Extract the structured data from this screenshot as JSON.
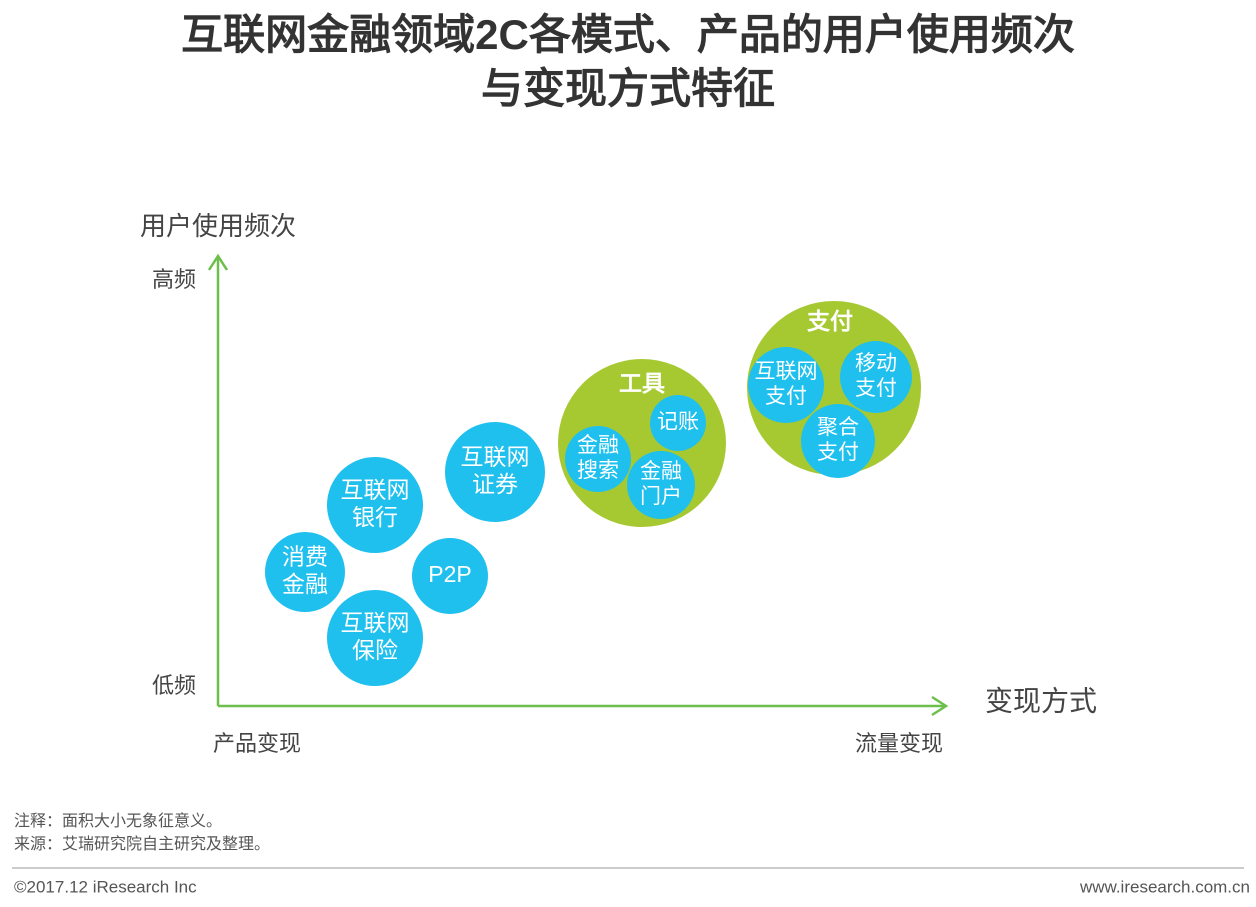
{
  "header": {
    "title": [
      "互联网金融领域2C各模式、产品的用户使用频次",
      "与变现方式特征"
    ]
  },
  "axes": {
    "y_title": "用户使用频次",
    "y_high": "高频",
    "y_low": "低频",
    "x_title": "变现方式",
    "x_left": "产品变现",
    "x_right": "流量变现"
  },
  "nodes": [
    {
      "lines": [
        "消费",
        "金融"
      ]
    },
    {
      "lines": [
        "互联网",
        "银行"
      ]
    },
    {
      "lines": [
        "互联网",
        "保险"
      ]
    },
    {
      "lines": [
        "P2P"
      ]
    },
    {
      "lines": [
        "互联网",
        "证券"
      ]
    }
  ],
  "groups": [
    {
      "label": "工具",
      "nodes": [
        {
          "lines": [
            "记账"
          ]
        },
        {
          "lines": [
            "金融",
            "搜索"
          ]
        },
        {
          "lines": [
            "金融",
            "门户"
          ]
        }
      ]
    },
    {
      "label": "支付",
      "nodes": [
        {
          "lines": [
            "互联网",
            "支付"
          ]
        },
        {
          "lines": [
            "移动",
            "支付"
          ]
        },
        {
          "lines": [
            "聚合",
            "支付"
          ]
        }
      ]
    }
  ],
  "notes": [
    "注释：面积大小无象征意义。",
    "来源：艾瑞研究院自主研究及整理。"
  ],
  "footer": {
    "left": "©2017.12 iResearch Inc",
    "right": "www.iresearch.com.cn"
  }
}
